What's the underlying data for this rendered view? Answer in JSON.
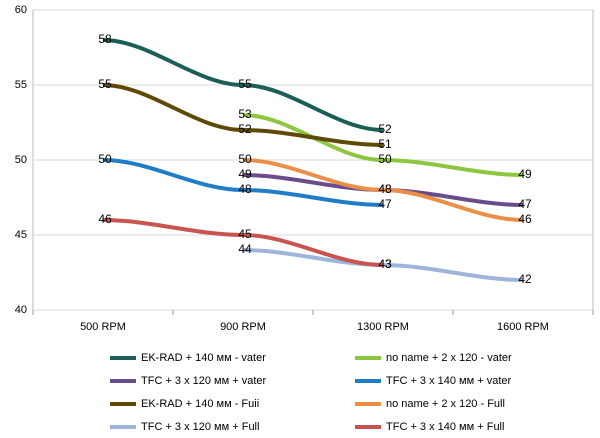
{
  "chart_data": {
    "type": "line",
    "categories": [
      "500  RPM",
      "900 RPM",
      "1300  RPM",
      "1600  RPM"
    ],
    "ylim": [
      40,
      60
    ],
    "yticks": [
      40,
      45,
      50,
      55,
      60
    ],
    "grid": true,
    "legend": "bottom",
    "series": [
      {
        "name": "EK-RAD  + 140 мм - vater",
        "color": "#1b5e57",
        "values": [
          58,
          55,
          52,
          null
        ]
      },
      {
        "name": "no name + 2 x 120 - vater",
        "color": "#8dc63f",
        "values": [
          null,
          53,
          50,
          49
        ]
      },
      {
        "name": "TFC + 3 x 120 мм + vater",
        "color": "#6a4c8c",
        "values": [
          null,
          49,
          48,
          47
        ]
      },
      {
        "name": "TFC + 3 x 140 мм + vater",
        "color": "#1f7cc7",
        "values": [
          50,
          48,
          47,
          null
        ]
      },
      {
        "name": "EK-RAD  + 140 мм -  Fuii",
        "color": "#5e4a05",
        "values": [
          55,
          52,
          51,
          null
        ]
      },
      {
        "name": "no name + 2 x 120 -  Full",
        "color": "#e98f47",
        "values": [
          null,
          50,
          48,
          46
        ]
      },
      {
        "name": "TFC + 3 x 120 мм +  Full",
        "color": "#9cb5d9",
        "values": [
          null,
          44,
          43,
          42
        ]
      },
      {
        "name": "TFC + 3 x 140 мм +  Full",
        "color": "#c8534f",
        "values": [
          46,
          45,
          43,
          null
        ]
      }
    ]
  }
}
